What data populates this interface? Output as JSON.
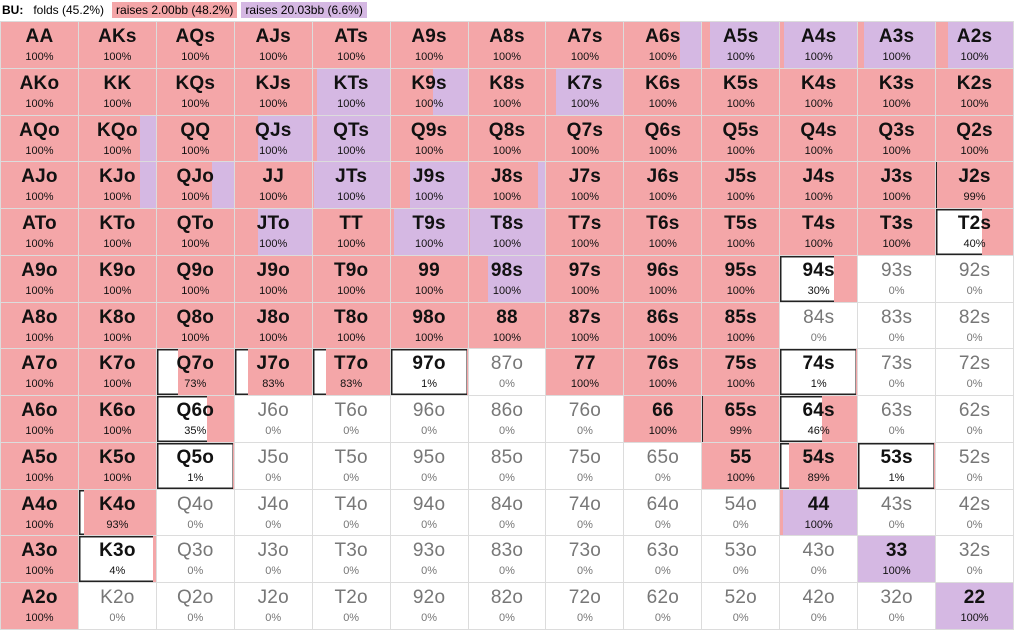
{
  "header": {
    "position": "BU:",
    "legend": [
      {
        "label": "folds (45.2%)",
        "color": "#ffffff"
      },
      {
        "label": "raises 2.00bb (48.2%)",
        "color": "#f4a6a8"
      },
      {
        "label": "raises 20.03bb (6.6%)",
        "color": "#d5b8e3"
      }
    ]
  },
  "colors": {
    "fold": "#ffffff",
    "raise": "#f4a6a8",
    "jam": "#d5b8e3"
  },
  "hands": [
    {
      "label": "AA",
      "pct": "100%",
      "freq": [
        0,
        1,
        0
      ]
    },
    {
      "label": "AKs",
      "pct": "100%",
      "freq": [
        0,
        1,
        0
      ]
    },
    {
      "label": "AQs",
      "pct": "100%",
      "freq": [
        0,
        1,
        0
      ]
    },
    {
      "label": "AJs",
      "pct": "100%",
      "freq": [
        0,
        1,
        0
      ]
    },
    {
      "label": "ATs",
      "pct": "100%",
      "freq": [
        0,
        1,
        0
      ]
    },
    {
      "label": "A9s",
      "pct": "100%",
      "freq": [
        0,
        1,
        0
      ]
    },
    {
      "label": "A8s",
      "pct": "100%",
      "freq": [
        0,
        1,
        0
      ]
    },
    {
      "label": "A7s",
      "pct": "100%",
      "freq": [
        0,
        1,
        0
      ]
    },
    {
      "label": "A6s",
      "pct": "100%",
      "freq": [
        0,
        0.72,
        0.28
      ]
    },
    {
      "label": "A5s",
      "pct": "100%",
      "freq": [
        0,
        0.1,
        0.9
      ]
    },
    {
      "label": "A4s",
      "pct": "100%",
      "freq": [
        0,
        0.05,
        0.95
      ]
    },
    {
      "label": "A3s",
      "pct": "100%",
      "freq": [
        0,
        0.08,
        0.92
      ]
    },
    {
      "label": "A2s",
      "pct": "100%",
      "freq": [
        0,
        0.15,
        0.85
      ]
    },
    {
      "label": "AKo",
      "pct": "100%",
      "freq": [
        0,
        1,
        0
      ]
    },
    {
      "label": "KK",
      "pct": "100%",
      "freq": [
        0,
        1,
        0
      ]
    },
    {
      "label": "KQs",
      "pct": "100%",
      "freq": [
        0,
        1,
        0
      ]
    },
    {
      "label": "KJs",
      "pct": "100%",
      "freq": [
        0,
        1,
        0
      ]
    },
    {
      "label": "KTs",
      "pct": "100%",
      "freq": [
        0,
        0.05,
        0.95
      ]
    },
    {
      "label": "K9s",
      "pct": "100%",
      "freq": [
        0,
        0.55,
        0.45
      ]
    },
    {
      "label": "K8s",
      "pct": "100%",
      "freq": [
        0,
        1,
        0
      ]
    },
    {
      "label": "K7s",
      "pct": "100%",
      "freq": [
        0,
        0.12,
        0.88
      ]
    },
    {
      "label": "K6s",
      "pct": "100%",
      "freq": [
        0,
        1,
        0
      ]
    },
    {
      "label": "K5s",
      "pct": "100%",
      "freq": [
        0,
        1,
        0
      ]
    },
    {
      "label": "K4s",
      "pct": "100%",
      "freq": [
        0,
        1,
        0
      ]
    },
    {
      "label": "K3s",
      "pct": "100%",
      "freq": [
        0,
        1,
        0
      ]
    },
    {
      "label": "K2s",
      "pct": "100%",
      "freq": [
        0,
        1,
        0
      ]
    },
    {
      "label": "AQo",
      "pct": "100%",
      "freq": [
        0,
        1,
        0
      ]
    },
    {
      "label": "KQo",
      "pct": "100%",
      "freq": [
        0,
        0.8,
        0.2
      ]
    },
    {
      "label": "QQ",
      "pct": "100%",
      "freq": [
        0,
        1,
        0
      ]
    },
    {
      "label": "QJs",
      "pct": "100%",
      "freq": [
        0,
        0.3,
        0.7
      ]
    },
    {
      "label": "QTs",
      "pct": "100%",
      "freq": [
        0,
        0.05,
        0.95
      ]
    },
    {
      "label": "Q9s",
      "pct": "100%",
      "freq": [
        0,
        1,
        0
      ]
    },
    {
      "label": "Q8s",
      "pct": "100%",
      "freq": [
        0,
        1,
        0
      ]
    },
    {
      "label": "Q7s",
      "pct": "100%",
      "freq": [
        0,
        1,
        0
      ]
    },
    {
      "label": "Q6s",
      "pct": "100%",
      "freq": [
        0,
        1,
        0
      ]
    },
    {
      "label": "Q5s",
      "pct": "100%",
      "freq": [
        0,
        1,
        0
      ]
    },
    {
      "label": "Q4s",
      "pct": "100%",
      "freq": [
        0,
        1,
        0
      ]
    },
    {
      "label": "Q3s",
      "pct": "100%",
      "freq": [
        0,
        1,
        0
      ]
    },
    {
      "label": "Q2s",
      "pct": "100%",
      "freq": [
        0,
        1,
        0
      ]
    },
    {
      "label": "AJo",
      "pct": "100%",
      "freq": [
        0,
        1,
        0
      ]
    },
    {
      "label": "KJo",
      "pct": "100%",
      "freq": [
        0,
        0.8,
        0.2
      ]
    },
    {
      "label": "QJo",
      "pct": "100%",
      "freq": [
        0,
        0.72,
        0.28
      ]
    },
    {
      "label": "JJ",
      "pct": "100%",
      "freq": [
        0,
        1,
        0
      ]
    },
    {
      "label": "JTs",
      "pct": "100%",
      "freq": [
        0,
        0.02,
        0.98
      ]
    },
    {
      "label": "J9s",
      "pct": "100%",
      "freq": [
        0,
        0.25,
        0.75
      ]
    },
    {
      "label": "J8s",
      "pct": "100%",
      "freq": [
        0,
        0.9,
        0.1
      ]
    },
    {
      "label": "J7s",
      "pct": "100%",
      "freq": [
        0,
        1,
        0
      ]
    },
    {
      "label": "J6s",
      "pct": "100%",
      "freq": [
        0,
        1,
        0
      ]
    },
    {
      "label": "J5s",
      "pct": "100%",
      "freq": [
        0,
        1,
        0
      ]
    },
    {
      "label": "J4s",
      "pct": "100%",
      "freq": [
        0,
        1,
        0
      ]
    },
    {
      "label": "J3s",
      "pct": "100%",
      "freq": [
        0,
        1,
        0
      ]
    },
    {
      "label": "J2s",
      "pct": "99%",
      "freq": [
        0.01,
        0.99,
        0
      ]
    },
    {
      "label": "ATo",
      "pct": "100%",
      "freq": [
        0,
        1,
        0
      ]
    },
    {
      "label": "KTo",
      "pct": "100%",
      "freq": [
        0,
        1,
        0
      ]
    },
    {
      "label": "QTo",
      "pct": "100%",
      "freq": [
        0,
        1,
        0
      ]
    },
    {
      "label": "JTo",
      "pct": "100%",
      "freq": [
        0,
        0.3,
        0.7
      ]
    },
    {
      "label": "TT",
      "pct": "100%",
      "freq": [
        0,
        1,
        0
      ]
    },
    {
      "label": "T9s",
      "pct": "100%",
      "freq": [
        0,
        0.05,
        0.95
      ]
    },
    {
      "label": "T8s",
      "pct": "100%",
      "freq": [
        0,
        0.02,
        0.98
      ]
    },
    {
      "label": "T7s",
      "pct": "100%",
      "freq": [
        0,
        1,
        0
      ]
    },
    {
      "label": "T6s",
      "pct": "100%",
      "freq": [
        0,
        1,
        0
      ]
    },
    {
      "label": "T5s",
      "pct": "100%",
      "freq": [
        0,
        1,
        0
      ]
    },
    {
      "label": "T4s",
      "pct": "100%",
      "freq": [
        0,
        1,
        0
      ]
    },
    {
      "label": "T3s",
      "pct": "100%",
      "freq": [
        0,
        1,
        0
      ]
    },
    {
      "label": "T2s",
      "pct": "40%",
      "freq": [
        0.6,
        0.4,
        0
      ]
    },
    {
      "label": "A9o",
      "pct": "100%",
      "freq": [
        0,
        1,
        0
      ]
    },
    {
      "label": "K9o",
      "pct": "100%",
      "freq": [
        0,
        1,
        0
      ]
    },
    {
      "label": "Q9o",
      "pct": "100%",
      "freq": [
        0,
        1,
        0
      ]
    },
    {
      "label": "J9o",
      "pct": "100%",
      "freq": [
        0,
        1,
        0
      ]
    },
    {
      "label": "T9o",
      "pct": "100%",
      "freq": [
        0,
        1,
        0
      ]
    },
    {
      "label": "99",
      "pct": "100%",
      "freq": [
        0,
        1,
        0
      ]
    },
    {
      "label": "98s",
      "pct": "100%",
      "freq": [
        0,
        0.25,
        0.75
      ]
    },
    {
      "label": "97s",
      "pct": "100%",
      "freq": [
        0,
        1,
        0
      ]
    },
    {
      "label": "96s",
      "pct": "100%",
      "freq": [
        0,
        1,
        0
      ]
    },
    {
      "label": "95s",
      "pct": "100%",
      "freq": [
        0,
        1,
        0
      ]
    },
    {
      "label": "94s",
      "pct": "30%",
      "freq": [
        0.7,
        0.3,
        0
      ]
    },
    {
      "label": "93s",
      "pct": "0%",
      "freq": [
        1,
        0,
        0
      ]
    },
    {
      "label": "92s",
      "pct": "0%",
      "freq": [
        1,
        0,
        0
      ]
    },
    {
      "label": "A8o",
      "pct": "100%",
      "freq": [
        0,
        1,
        0
      ]
    },
    {
      "label": "K8o",
      "pct": "100%",
      "freq": [
        0,
        1,
        0
      ]
    },
    {
      "label": "Q8o",
      "pct": "100%",
      "freq": [
        0,
        1,
        0
      ]
    },
    {
      "label": "J8o",
      "pct": "100%",
      "freq": [
        0,
        1,
        0
      ]
    },
    {
      "label": "T8o",
      "pct": "100%",
      "freq": [
        0,
        1,
        0
      ]
    },
    {
      "label": "98o",
      "pct": "100%",
      "freq": [
        0,
        1,
        0
      ]
    },
    {
      "label": "88",
      "pct": "100%",
      "freq": [
        0,
        1,
        0
      ]
    },
    {
      "label": "87s",
      "pct": "100%",
      "freq": [
        0,
        1,
        0
      ]
    },
    {
      "label": "86s",
      "pct": "100%",
      "freq": [
        0,
        1,
        0
      ]
    },
    {
      "label": "85s",
      "pct": "100%",
      "freq": [
        0,
        1,
        0
      ]
    },
    {
      "label": "84s",
      "pct": "0%",
      "freq": [
        1,
        0,
        0
      ]
    },
    {
      "label": "83s",
      "pct": "0%",
      "freq": [
        1,
        0,
        0
      ]
    },
    {
      "label": "82s",
      "pct": "0%",
      "freq": [
        1,
        0,
        0
      ]
    },
    {
      "label": "A7o",
      "pct": "100%",
      "freq": [
        0,
        1,
        0
      ]
    },
    {
      "label": "K7o",
      "pct": "100%",
      "freq": [
        0,
        1,
        0
      ]
    },
    {
      "label": "Q7o",
      "pct": "73%",
      "freq": [
        0.27,
        0.73,
        0
      ]
    },
    {
      "label": "J7o",
      "pct": "83%",
      "freq": [
        0.17,
        0.83,
        0
      ]
    },
    {
      "label": "T7o",
      "pct": "83%",
      "freq": [
        0.17,
        0.83,
        0
      ]
    },
    {
      "label": "97o",
      "pct": "1%",
      "freq": [
        0.99,
        0.01,
        0
      ]
    },
    {
      "label": "87o",
      "pct": "0%",
      "freq": [
        1,
        0,
        0
      ]
    },
    {
      "label": "77",
      "pct": "100%",
      "freq": [
        0,
        1,
        0
      ]
    },
    {
      "label": "76s",
      "pct": "100%",
      "freq": [
        0,
        1,
        0
      ]
    },
    {
      "label": "75s",
      "pct": "100%",
      "freq": [
        0,
        1,
        0
      ]
    },
    {
      "label": "74s",
      "pct": "1%",
      "freq": [
        0.99,
        0.01,
        0
      ]
    },
    {
      "label": "73s",
      "pct": "0%",
      "freq": [
        1,
        0,
        0
      ]
    },
    {
      "label": "72s",
      "pct": "0%",
      "freq": [
        1,
        0,
        0
      ]
    },
    {
      "label": "A6o",
      "pct": "100%",
      "freq": [
        0,
        1,
        0
      ]
    },
    {
      "label": "K6o",
      "pct": "100%",
      "freq": [
        0,
        1,
        0
      ]
    },
    {
      "label": "Q6o",
      "pct": "35%",
      "freq": [
        0.65,
        0.35,
        0
      ]
    },
    {
      "label": "J6o",
      "pct": "0%",
      "freq": [
        1,
        0,
        0
      ]
    },
    {
      "label": "T6o",
      "pct": "0%",
      "freq": [
        1,
        0,
        0
      ]
    },
    {
      "label": "96o",
      "pct": "0%",
      "freq": [
        1,
        0,
        0
      ]
    },
    {
      "label": "86o",
      "pct": "0%",
      "freq": [
        1,
        0,
        0
      ]
    },
    {
      "label": "76o",
      "pct": "0%",
      "freq": [
        1,
        0,
        0
      ]
    },
    {
      "label": "66",
      "pct": "100%",
      "freq": [
        0,
        1,
        0
      ]
    },
    {
      "label": "65s",
      "pct": "99%",
      "freq": [
        0.01,
        0.99,
        0
      ]
    },
    {
      "label": "64s",
      "pct": "46%",
      "freq": [
        0.54,
        0.46,
        0
      ]
    },
    {
      "label": "63s",
      "pct": "0%",
      "freq": [
        1,
        0,
        0
      ]
    },
    {
      "label": "62s",
      "pct": "0%",
      "freq": [
        1,
        0,
        0
      ]
    },
    {
      "label": "A5o",
      "pct": "100%",
      "freq": [
        0,
        1,
        0
      ]
    },
    {
      "label": "K5o",
      "pct": "100%",
      "freq": [
        0,
        1,
        0
      ]
    },
    {
      "label": "Q5o",
      "pct": "1%",
      "freq": [
        0.99,
        0.01,
        0
      ]
    },
    {
      "label": "J5o",
      "pct": "0%",
      "freq": [
        1,
        0,
        0
      ]
    },
    {
      "label": "T5o",
      "pct": "0%",
      "freq": [
        1,
        0,
        0
      ]
    },
    {
      "label": "95o",
      "pct": "0%",
      "freq": [
        1,
        0,
        0
      ]
    },
    {
      "label": "85o",
      "pct": "0%",
      "freq": [
        1,
        0,
        0
      ]
    },
    {
      "label": "75o",
      "pct": "0%",
      "freq": [
        1,
        0,
        0
      ]
    },
    {
      "label": "65o",
      "pct": "0%",
      "freq": [
        1,
        0,
        0
      ]
    },
    {
      "label": "55",
      "pct": "100%",
      "freq": [
        0,
        1,
        0
      ]
    },
    {
      "label": "54s",
      "pct": "89%",
      "freq": [
        0.11,
        0.89,
        0
      ]
    },
    {
      "label": "53s",
      "pct": "1%",
      "freq": [
        0.99,
        0.01,
        0
      ]
    },
    {
      "label": "52s",
      "pct": "0%",
      "freq": [
        1,
        0,
        0
      ]
    },
    {
      "label": "A4o",
      "pct": "100%",
      "freq": [
        0,
        1,
        0
      ]
    },
    {
      "label": "K4o",
      "pct": "93%",
      "freq": [
        0.07,
        0.93,
        0
      ]
    },
    {
      "label": "Q4o",
      "pct": "0%",
      "freq": [
        1,
        0,
        0
      ]
    },
    {
      "label": "J4o",
      "pct": "0%",
      "freq": [
        1,
        0,
        0
      ]
    },
    {
      "label": "T4o",
      "pct": "0%",
      "freq": [
        1,
        0,
        0
      ]
    },
    {
      "label": "94o",
      "pct": "0%",
      "freq": [
        1,
        0,
        0
      ]
    },
    {
      "label": "84o",
      "pct": "0%",
      "freq": [
        1,
        0,
        0
      ]
    },
    {
      "label": "74o",
      "pct": "0%",
      "freq": [
        1,
        0,
        0
      ]
    },
    {
      "label": "64o",
      "pct": "0%",
      "freq": [
        1,
        0,
        0
      ]
    },
    {
      "label": "54o",
      "pct": "0%",
      "freq": [
        1,
        0,
        0
      ]
    },
    {
      "label": "44",
      "pct": "100%",
      "freq": [
        0,
        0.03,
        0.97
      ]
    },
    {
      "label": "43s",
      "pct": "0%",
      "freq": [
        1,
        0,
        0
      ]
    },
    {
      "label": "42s",
      "pct": "0%",
      "freq": [
        1,
        0,
        0
      ]
    },
    {
      "label": "A3o",
      "pct": "100%",
      "freq": [
        0,
        1,
        0
      ]
    },
    {
      "label": "K3o",
      "pct": "4%",
      "freq": [
        0.96,
        0.04,
        0
      ]
    },
    {
      "label": "Q3o",
      "pct": "0%",
      "freq": [
        1,
        0,
        0
      ]
    },
    {
      "label": "J3o",
      "pct": "0%",
      "freq": [
        1,
        0,
        0
      ]
    },
    {
      "label": "T3o",
      "pct": "0%",
      "freq": [
        1,
        0,
        0
      ]
    },
    {
      "label": "93o",
      "pct": "0%",
      "freq": [
        1,
        0,
        0
      ]
    },
    {
      "label": "83o",
      "pct": "0%",
      "freq": [
        1,
        0,
        0
      ]
    },
    {
      "label": "73o",
      "pct": "0%",
      "freq": [
        1,
        0,
        0
      ]
    },
    {
      "label": "63o",
      "pct": "0%",
      "freq": [
        1,
        0,
        0
      ]
    },
    {
      "label": "53o",
      "pct": "0%",
      "freq": [
        1,
        0,
        0
      ]
    },
    {
      "label": "43o",
      "pct": "0%",
      "freq": [
        1,
        0,
        0
      ]
    },
    {
      "label": "33",
      "pct": "100%",
      "freq": [
        0,
        0,
        1
      ]
    },
    {
      "label": "32s",
      "pct": "0%",
      "freq": [
        1,
        0,
        0
      ]
    },
    {
      "label": "A2o",
      "pct": "100%",
      "freq": [
        0,
        1,
        0
      ]
    },
    {
      "label": "K2o",
      "pct": "0%",
      "freq": [
        1,
        0,
        0
      ]
    },
    {
      "label": "Q2o",
      "pct": "0%",
      "freq": [
        1,
        0,
        0
      ]
    },
    {
      "label": "J2o",
      "pct": "0%",
      "freq": [
        1,
        0,
        0
      ]
    },
    {
      "label": "T2o",
      "pct": "0%",
      "freq": [
        1,
        0,
        0
      ]
    },
    {
      "label": "92o",
      "pct": "0%",
      "freq": [
        1,
        0,
        0
      ]
    },
    {
      "label": "82o",
      "pct": "0%",
      "freq": [
        1,
        0,
        0
      ]
    },
    {
      "label": "72o",
      "pct": "0%",
      "freq": [
        1,
        0,
        0
      ]
    },
    {
      "label": "62o",
      "pct": "0%",
      "freq": [
        1,
        0,
        0
      ]
    },
    {
      "label": "52o",
      "pct": "0%",
      "freq": [
        1,
        0,
        0
      ]
    },
    {
      "label": "42o",
      "pct": "0%",
      "freq": [
        1,
        0,
        0
      ]
    },
    {
      "label": "32o",
      "pct": "0%",
      "freq": [
        1,
        0,
        0
      ]
    },
    {
      "label": "22",
      "pct": "100%",
      "freq": [
        0,
        0,
        1
      ]
    }
  ]
}
